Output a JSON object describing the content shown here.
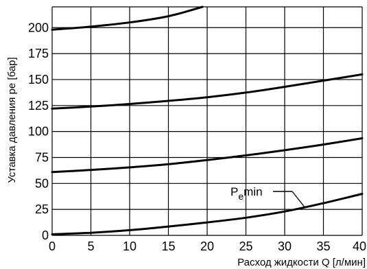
{
  "chart_data": {
    "type": "line",
    "xlabel": "Расход жидкости Q [л/мин]",
    "ylabel": "Уставка давления pe [бар]",
    "xlim": [
      0,
      40
    ],
    "ylim": [
      0,
      220
    ],
    "x_ticks": [
      "0",
      "5",
      "10",
      "15",
      "20",
      "25",
      "30",
      "35",
      "40"
    ],
    "y_ticks": [
      "0",
      "25",
      "50",
      "75",
      "100",
      "125",
      "150",
      "175",
      "200"
    ],
    "grid": true,
    "annotation": {
      "base": "P",
      "sub": "e",
      "suffix": "min",
      "target_series": 3
    },
    "series": [
      {
        "x": [
          0,
          5,
          10,
          15,
          19.4
        ],
        "y": [
          198,
          201,
          205,
          211,
          220
        ]
      },
      {
        "x": [
          0,
          5,
          10,
          15,
          20,
          25,
          30,
          35,
          40
        ],
        "y": [
          122,
          124,
          126.5,
          129.5,
          133,
          137.5,
          143,
          149,
          155
        ]
      },
      {
        "x": [
          0,
          5,
          10,
          15,
          20,
          25,
          30,
          35,
          40
        ],
        "y": [
          61,
          63,
          65.5,
          68.5,
          72.5,
          77,
          82,
          87.5,
          93.5
        ]
      },
      {
        "x": [
          0,
          5,
          10,
          15,
          20,
          25,
          30,
          35,
          40
        ],
        "y": [
          1,
          2.5,
          5,
          8.5,
          12.5,
          17,
          23,
          31,
          40
        ]
      }
    ]
  }
}
